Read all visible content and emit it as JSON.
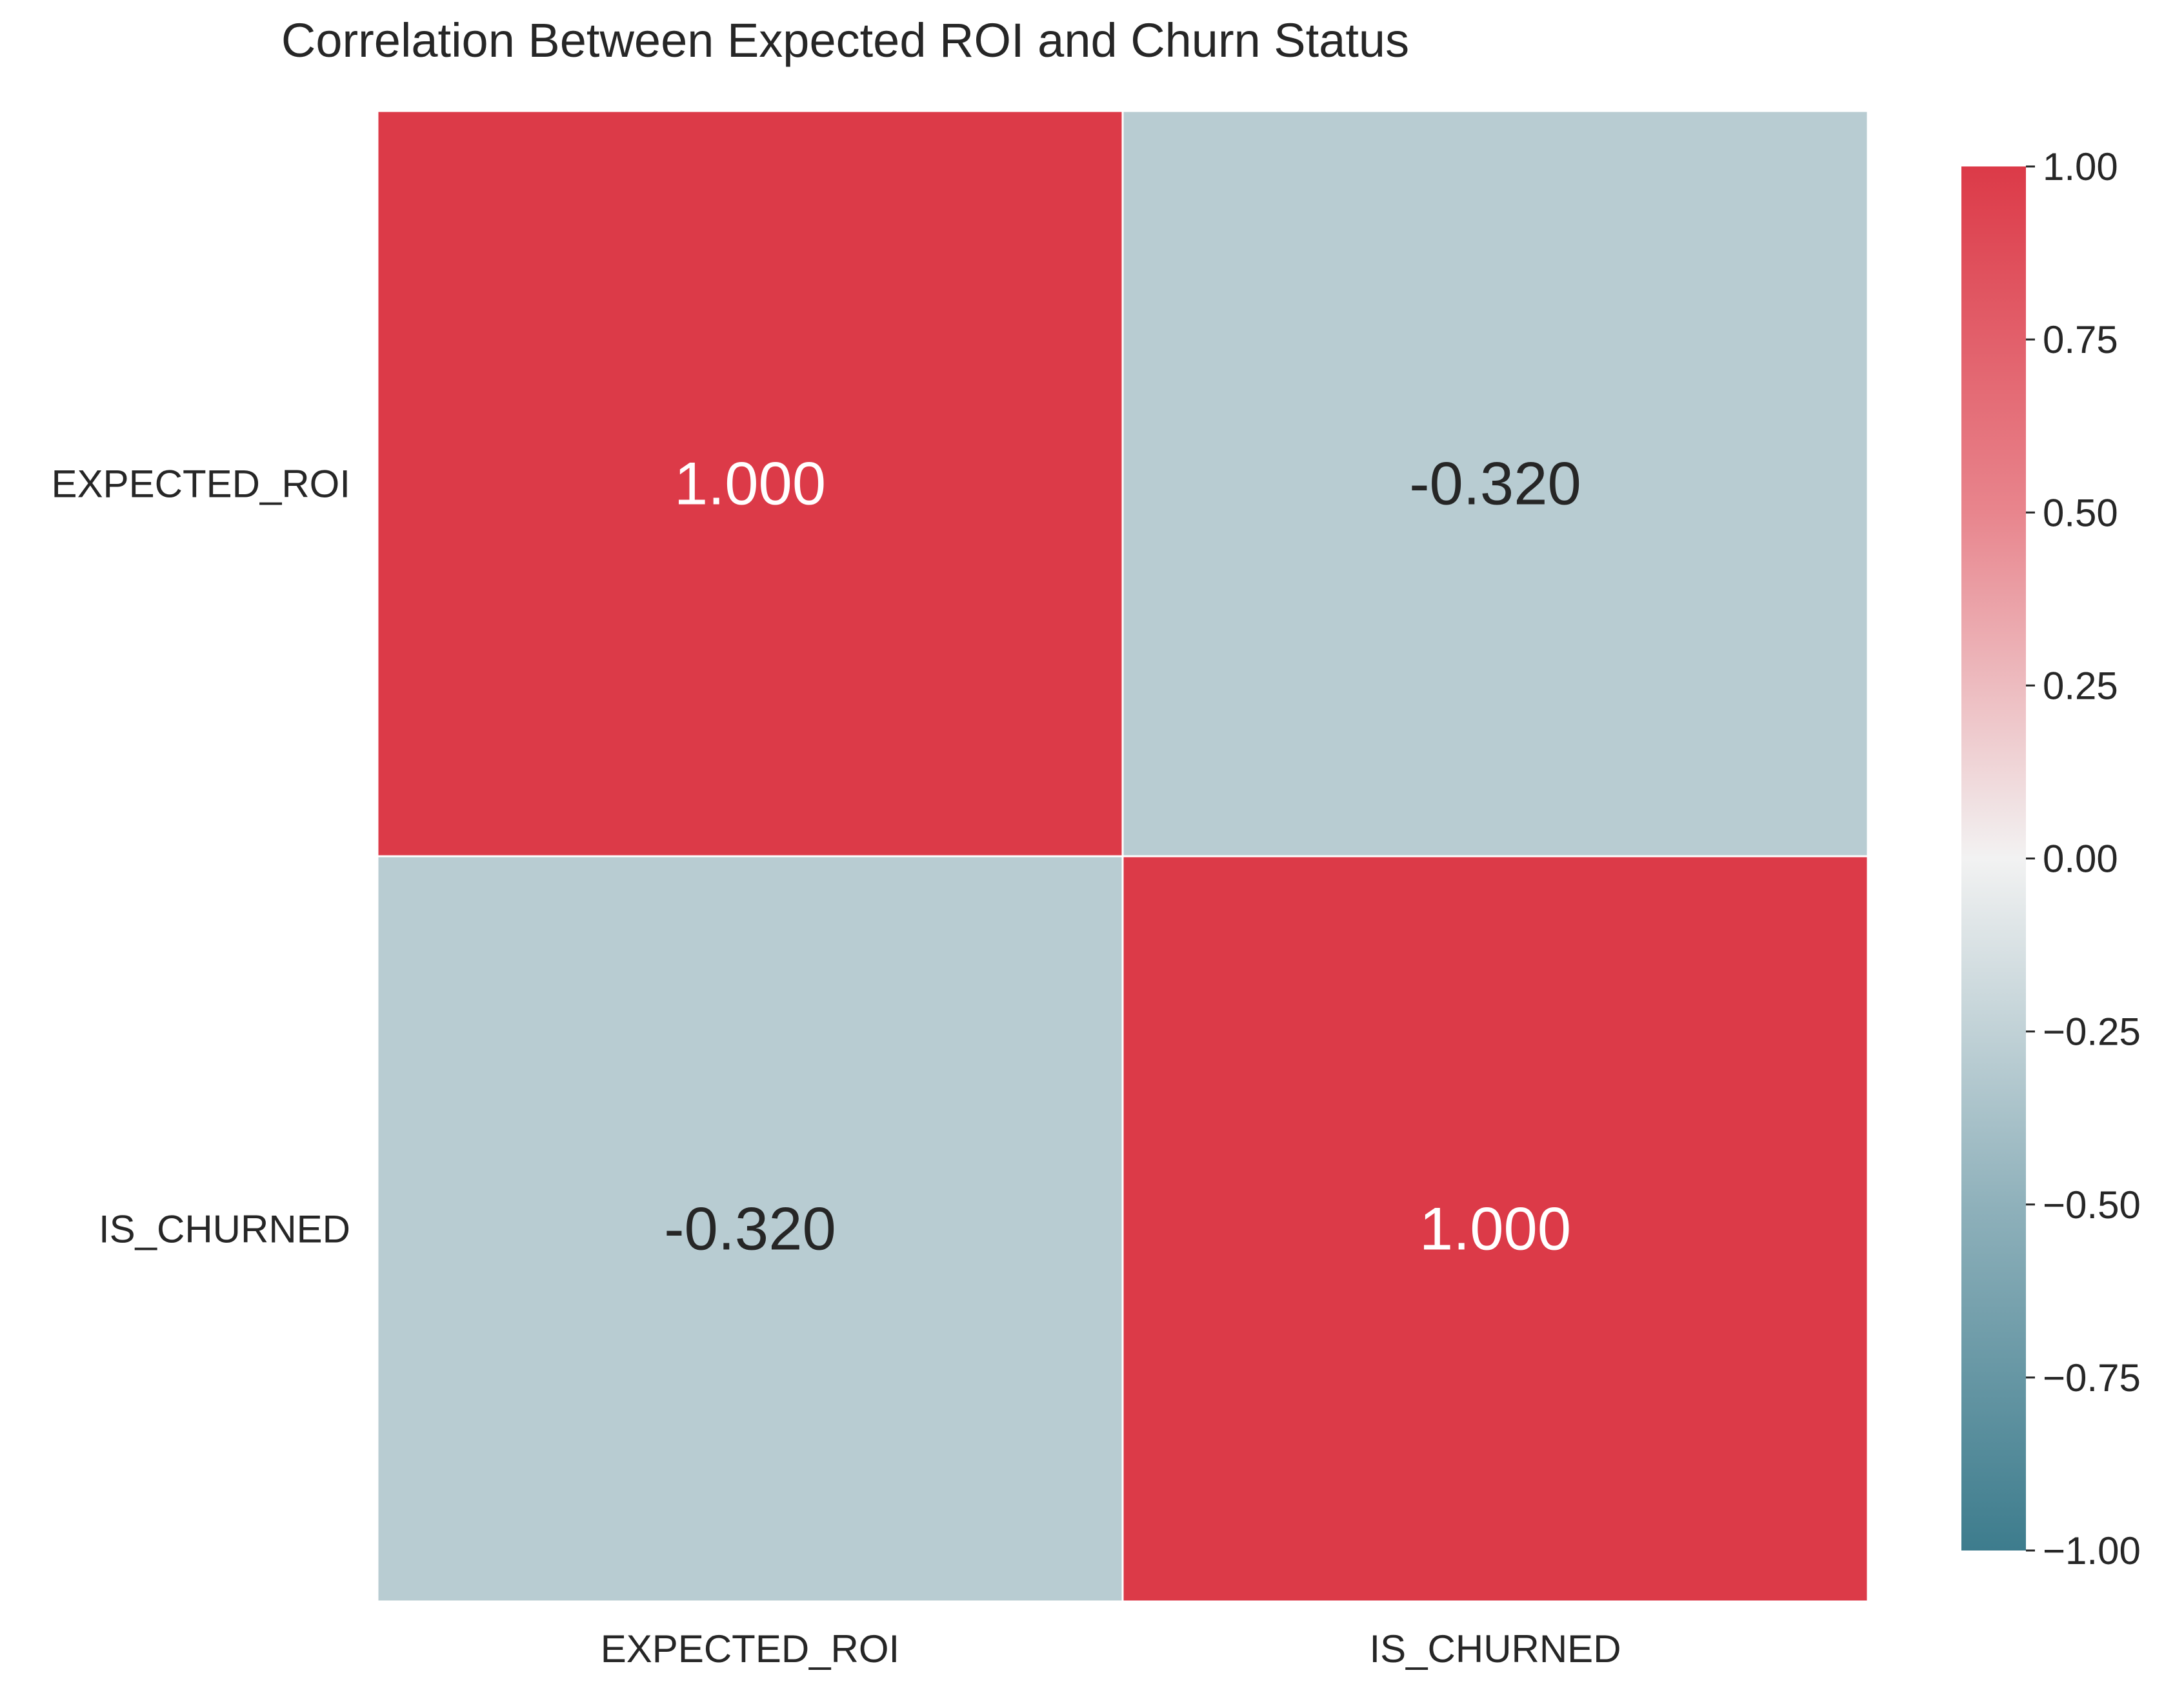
{
  "chart_data": {
    "type": "heatmap",
    "title": "Correlation Between Expected ROI and Churn Status",
    "row_labels": [
      "EXPECTED_ROI",
      "IS_CHURNED"
    ],
    "col_labels": [
      "EXPECTED_ROI",
      "IS_CHURNED"
    ],
    "values": [
      [
        1.0,
        -0.32
      ],
      [
        -0.32,
        1.0
      ]
    ],
    "annotations": [
      [
        "1.000",
        "-0.320"
      ],
      [
        "-0.320",
        "1.000"
      ]
    ],
    "vmin": -1.0,
    "vmax": 1.0,
    "colormap": {
      "low": "#3d7c8d",
      "mid": "#f2f2f2",
      "high": "#dc3a48"
    },
    "colorbar": {
      "ticks": [
        1.0,
        0.75,
        0.5,
        0.25,
        0.0,
        -0.25,
        -0.5,
        -0.75,
        -1.0
      ],
      "tick_labels": [
        "1.00",
        "0.75",
        "0.50",
        "0.25",
        "0.00",
        "−0.25",
        "−0.50",
        "−0.75",
        "−1.00"
      ]
    },
    "grid": false,
    "legend": "colorbar-right"
  }
}
